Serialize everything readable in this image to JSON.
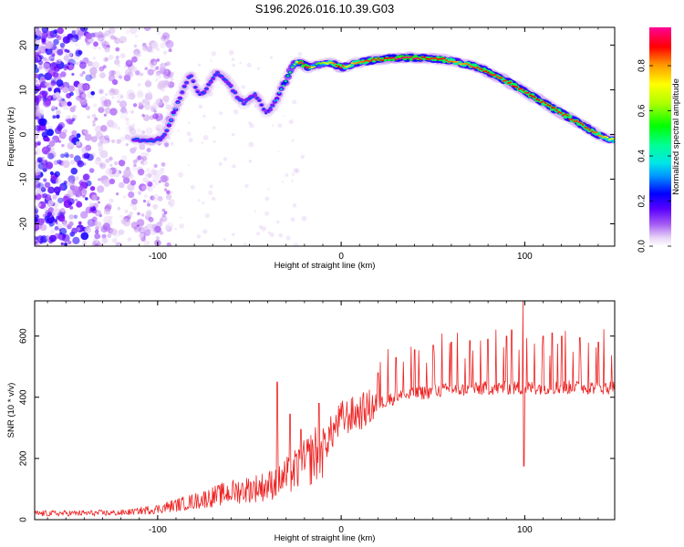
{
  "figure_title": "S196.2026.016.10.39.G03",
  "chart_data": [
    {
      "type": "heatmap",
      "title": "S196.2026.016.10.39.G03",
      "xlabel": "Height of straight line (km)",
      "ylabel": "Frequency (Hz)",
      "xlim": [
        -167,
        149
      ],
      "ylim": [
        -25,
        24
      ],
      "xticks": [
        -100,
        0,
        100
      ],
      "yticks": [
        -20,
        -10,
        0,
        10,
        20
      ],
      "colorbar": {
        "label": "Normalized spectral amplitude",
        "range": [
          0.0,
          0.97
        ],
        "ticks": [
          0.0,
          0.2,
          0.4,
          0.6,
          0.8
        ],
        "colormap": [
          "#ffffff",
          "#d8b8f0",
          "#7a00ff",
          "#0000ff",
          "#00c8ff",
          "#00ff88",
          "#00ff00",
          "#c8ff00",
          "#ffff00",
          "#ff8000",
          "#ff0000",
          "#ff00a0"
        ]
      },
      "ridge": {
        "x": [
          -113,
          -108,
          -103,
          -99,
          -96,
          -93,
          -90,
          -87,
          -84,
          -82,
          -80,
          -77,
          -74,
          -71,
          -68,
          -65,
          -62,
          -59,
          -56,
          -53,
          -50,
          -47,
          -44,
          -41,
          -38,
          -35,
          -33,
          -30,
          -28,
          -25,
          -22,
          -18,
          -14,
          -10,
          -6,
          -2,
          0,
          3,
          6,
          10,
          15,
          20,
          25,
          30,
          35,
          40,
          45,
          50,
          55,
          60,
          65,
          70,
          75,
          80,
          85,
          90,
          95,
          100,
          105,
          110,
          115,
          120,
          125,
          130,
          135,
          140,
          143,
          146,
          149
        ],
        "freq": [
          -1,
          -1.2,
          -1.4,
          -1,
          0,
          3,
          6,
          9,
          12,
          13.5,
          11,
          9,
          9.5,
          12,
          14,
          13,
          12,
          10,
          8,
          7,
          8,
          9,
          7,
          5,
          6,
          8,
          10,
          12,
          14,
          16,
          16,
          15,
          15.5,
          16,
          16,
          15.5,
          15,
          15.3,
          15.8,
          16.2,
          16.5,
          16.8,
          17,
          17.1,
          17.2,
          17.2,
          17.1,
          17,
          16.8,
          16.5,
          16,
          15.5,
          15,
          14,
          13,
          12,
          10.8,
          9.6,
          8.4,
          7.2,
          6,
          4.8,
          3.6,
          2.4,
          1.2,
          0,
          -0.6,
          -1,
          -1.2
        ],
        "amplitude": [
          0.3,
          0.3,
          0.3,
          0.3,
          0.3,
          0.35,
          0.35,
          0.3,
          0.3,
          0.3,
          0.28,
          0.28,
          0.3,
          0.3,
          0.3,
          0.3,
          0.3,
          0.3,
          0.3,
          0.3,
          0.3,
          0.3,
          0.28,
          0.28,
          0.3,
          0.35,
          0.4,
          0.5,
          0.55,
          0.6,
          0.95,
          0.9,
          0.55,
          0.6,
          0.75,
          0.85,
          0.9,
          0.7,
          0.75,
          0.8,
          0.85,
          0.85,
          0.9,
          0.95,
          0.95,
          0.95,
          0.9,
          0.85,
          0.88,
          0.8,
          0.75,
          0.82,
          0.85,
          0.88,
          0.85,
          0.85,
          0.88,
          0.85,
          0.9,
          0.85,
          0.88,
          0.85,
          0.85,
          0.85,
          0.85,
          0.8,
          0.75,
          0.7,
          0.65
        ]
      }
    },
    {
      "type": "line",
      "xlabel": "Height of straight line (km)",
      "ylabel": "SNR (10 * v/v)",
      "xlim": [
        -167,
        149
      ],
      "ylim": [
        0,
        715
      ],
      "xticks": [
        -100,
        0,
        100
      ],
      "yticks": [
        0,
        200,
        400,
        600
      ],
      "color": "#ee2222",
      "baseline": {
        "x": [
          -167,
          -120,
          -100,
          -80,
          -60,
          -40,
          -30,
          -20,
          -10,
          0,
          10,
          20,
          30,
          40,
          50,
          60,
          70,
          80,
          90,
          100,
          110,
          120,
          130,
          140,
          149
        ],
        "y": [
          20,
          22,
          35,
          60,
          90,
          110,
          140,
          180,
          240,
          330,
          350,
          380,
          400,
          410,
          420,
          425,
          425,
          430,
          430,
          430,
          432,
          432,
          432,
          432,
          432
        ]
      },
      "spikes": [
        {
          "x": -35,
          "y": 450
        },
        {
          "x": -28,
          "y": 345
        },
        {
          "x": -22,
          "y": 295
        },
        {
          "x": -12,
          "y": 380
        },
        {
          "x": 20,
          "y": 480
        },
        {
          "x": 30,
          "y": 530
        },
        {
          "x": 40,
          "y": 555
        },
        {
          "x": 50,
          "y": 570
        },
        {
          "x": 60,
          "y": 580
        },
        {
          "x": 70,
          "y": 585
        },
        {
          "x": 80,
          "y": 590
        },
        {
          "x": 90,
          "y": 600
        },
        {
          "x": 93,
          "y": 620
        },
        {
          "x": 99,
          "y": 715
        },
        {
          "x": 99.6,
          "y": 175
        },
        {
          "x": 110,
          "y": 600
        },
        {
          "x": 115,
          "y": 610
        },
        {
          "x": 120,
          "y": 600
        },
        {
          "x": 130,
          "y": 595
        },
        {
          "x": 140,
          "y": 580
        }
      ]
    }
  ]
}
